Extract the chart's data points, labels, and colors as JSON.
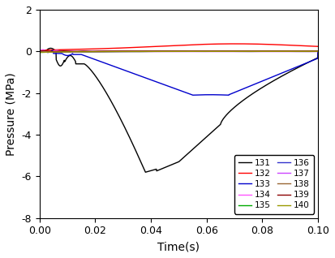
{
  "title": "",
  "xlabel": "Time(s)",
  "ylabel": "Pressure (MPa)",
  "xlim": [
    0.0,
    0.1
  ],
  "ylim": [
    -8,
    2
  ],
  "yticks": [
    -8,
    -6,
    -4,
    -2,
    0,
    2
  ],
  "xticks": [
    0.0,
    0.02,
    0.04,
    0.06,
    0.08,
    0.1
  ],
  "legend_labels": [
    "131",
    "132",
    "133",
    "134",
    "135",
    "136",
    "137",
    "138",
    "139",
    "140"
  ],
  "line_colors": [
    "#000000",
    "#ff0000",
    "#0000cc",
    "#ff55ff",
    "#00aa00",
    "#3333cc",
    "#cc44ff",
    "#996633",
    "#8b0000",
    "#999900"
  ],
  "line_widths": [
    1.0,
    1.0,
    1.0,
    1.0,
    1.0,
    1.0,
    1.0,
    1.0,
    1.0,
    1.0
  ],
  "figsize": [
    4.13,
    3.18
  ],
  "dpi": 100
}
